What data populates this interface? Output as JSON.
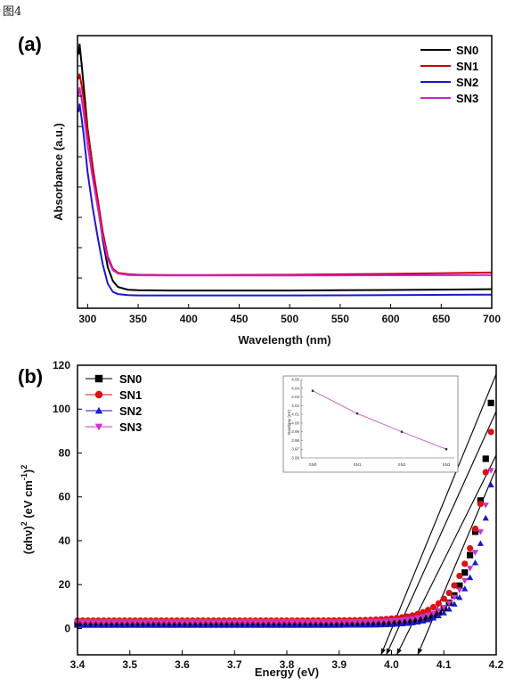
{
  "figure_label": "图4",
  "chart_data": [
    {
      "type": "line",
      "panel_label": "(a)",
      "title": "",
      "xlabel": "Wavelength (nm)",
      "ylabel": "Absorbance (a.u.)",
      "xlim": [
        290,
        700
      ],
      "ylim": [
        0,
        1
      ],
      "xticks": [
        300,
        350,
        400,
        450,
        500,
        550,
        600,
        650,
        700
      ],
      "y_tick_labels_shown": false,
      "legend_position": "top-right",
      "series": [
        {
          "name": "SN0",
          "color": "#000000",
          "x": [
            291,
            292,
            294,
            296,
            298,
            300,
            305,
            310,
            315,
            320,
            325,
            330,
            340,
            350,
            380,
            420,
            500,
            600,
            700
          ],
          "y": [
            0.93,
            0.97,
            0.9,
            0.82,
            0.74,
            0.66,
            0.52,
            0.38,
            0.25,
            0.15,
            0.1,
            0.078,
            0.068,
            0.066,
            0.065,
            0.065,
            0.065,
            0.067,
            0.07
          ]
        },
        {
          "name": "SN1",
          "color": "#cc0000",
          "x": [
            291,
            292,
            294,
            296,
            298,
            300,
            305,
            310,
            315,
            320,
            325,
            330,
            340,
            350,
            380,
            420,
            500,
            600,
            700
          ],
          "y": [
            0.84,
            0.86,
            0.82,
            0.77,
            0.71,
            0.65,
            0.52,
            0.4,
            0.28,
            0.19,
            0.145,
            0.13,
            0.125,
            0.123,
            0.122,
            0.122,
            0.123,
            0.126,
            0.131
          ]
        },
        {
          "name": "SN2",
          "color": "#1a1acc",
          "x": [
            291,
            292,
            294,
            296,
            298,
            300,
            305,
            310,
            315,
            320,
            325,
            330,
            340,
            350,
            380,
            420,
            500,
            600,
            700
          ],
          "y": [
            0.72,
            0.75,
            0.7,
            0.64,
            0.57,
            0.5,
            0.37,
            0.26,
            0.16,
            0.09,
            0.06,
            0.052,
            0.048,
            0.047,
            0.047,
            0.047,
            0.047,
            0.048,
            0.05
          ]
        },
        {
          "name": "SN3",
          "color": "#cc22cc",
          "x": [
            291,
            292,
            294,
            296,
            298,
            300,
            305,
            310,
            315,
            320,
            325,
            330,
            340,
            350,
            380,
            420,
            500,
            600,
            700
          ],
          "y": [
            0.78,
            0.81,
            0.77,
            0.72,
            0.66,
            0.6,
            0.48,
            0.37,
            0.26,
            0.18,
            0.14,
            0.127,
            0.122,
            0.121,
            0.12,
            0.12,
            0.12,
            0.121,
            0.122
          ]
        }
      ]
    },
    {
      "type": "scatter",
      "panel_label": "(b)",
      "title": "",
      "xlabel": "Energy (eV)",
      "ylabel": "(αhν)² (eV cm⁻¹)²",
      "ylabel_parts": {
        "a": "(αhν)",
        "s1": "2",
        "b": " (eV cm",
        "s2": "-1",
        "c": ")",
        "s3": "2"
      },
      "xlim": [
        3.4,
        4.2
      ],
      "ylim": [
        -12,
        120
      ],
      "xticks": [
        "3.4",
        "3.5",
        "3.6",
        "3.7",
        "3.8",
        "3.9",
        "4.0",
        "4.1",
        "4.2"
      ],
      "yticks": [
        "0",
        "20",
        "40",
        "60",
        "80",
        "100",
        "120"
      ],
      "legend_position": "top-left",
      "series": [
        {
          "name": "SN0",
          "color": "#000000",
          "marker": "square",
          "base": 1.8,
          "A": 101,
          "k": 29,
          "x_end": 4.19,
          "fit": {
            "x": [
              3.98,
              4.2
            ],
            "y": [
              -12,
              116
            ]
          }
        },
        {
          "name": "SN1",
          "color": "#dd1111",
          "marker": "circle",
          "base": 3.6,
          "A": 86,
          "k": 24,
          "x_end": 4.19,
          "fit": {
            "x": [
              3.99,
              4.2
            ],
            "y": [
              -12,
              99
            ]
          }
        },
        {
          "name": "SN2",
          "color": "#1a1acc",
          "marker": "triangle-up",
          "base": 1.5,
          "A": 64,
          "k": 27,
          "x_end": 4.19,
          "fit": {
            "x": [
              4.05,
              4.2
            ],
            "y": [
              -12,
              73
            ]
          }
        },
        {
          "name": "SN3",
          "color": "#cc33cc",
          "marker": "triangle-down",
          "base": 3.0,
          "A": 69,
          "k": 26,
          "x_end": 4.19,
          "fit": {
            "x": [
              4.01,
              4.2
            ],
            "y": [
              -12,
              79
            ]
          }
        }
      ],
      "inset": {
        "type": "line",
        "xlabel": "",
        "ylabel": "Bandgap (eV)",
        "categories": [
          "SN0",
          "SN1",
          "SN2",
          "SN3"
        ],
        "values": [
          4.037,
          4.011,
          3.99,
          3.97
        ],
        "ylim": [
          3.96,
          4.05
        ],
        "yticks": [
          "3.96",
          "3.97",
          "3.98",
          "3.99",
          "4.00",
          "4.01",
          "4.02",
          "4.03",
          "4.04",
          "4.05"
        ],
        "color": "#cc66cc"
      }
    }
  ]
}
